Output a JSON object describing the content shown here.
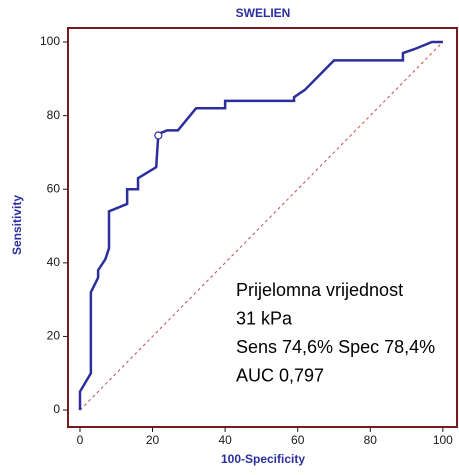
{
  "chart_data": {
    "type": "line",
    "title": "SWELIEN",
    "xlabel": "100-Specificity",
    "ylabel": "Sensitivity",
    "xlim": [
      -3.3,
      103.9
    ],
    "ylim": [
      -4.6,
      103.8
    ],
    "xticks": [
      0,
      20,
      40,
      60,
      80,
      100
    ],
    "yticks": [
      0,
      20,
      40,
      60,
      80,
      100
    ],
    "diagonal_color": "#c0504d",
    "series": [
      {
        "color": "#2b2f9e",
        "x": [
          0,
          0,
          3,
          3,
          5,
          5,
          7,
          8,
          8,
          13,
          13,
          16,
          16,
          21,
          21.6,
          24,
          27,
          32,
          40,
          40,
          59,
          59,
          62,
          70,
          89,
          89,
          92,
          97,
          100
        ],
        "values": [
          0,
          5,
          10,
          32,
          36,
          38,
          41,
          44,
          54,
          56,
          60,
          60,
          63,
          66,
          75,
          76,
          76,
          82,
          82,
          84,
          84,
          85,
          87,
          95,
          95,
          97,
          98,
          100,
          100
        ]
      }
    ],
    "marker": {
      "x": 21.6,
      "y": 74.6
    },
    "annotations": [
      "Prijelomna vrijednost",
      "31 kPa",
      "Sens 74,6% Spec 78,4%",
      "AUC 0,797"
    ]
  }
}
